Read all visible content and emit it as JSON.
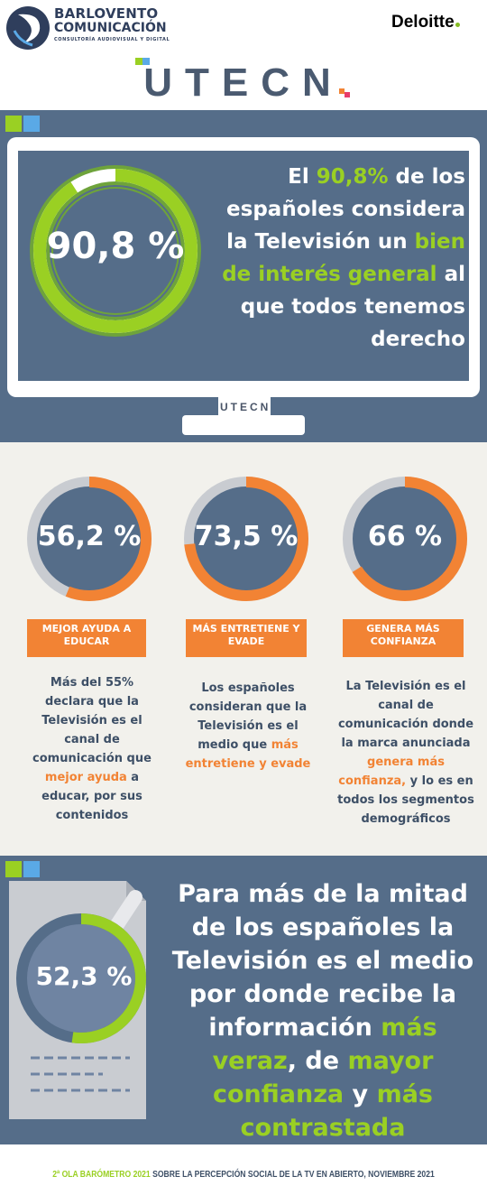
{
  "header": {
    "barlovento_line1": "BARLOVENTO",
    "barlovento_line2": "COMUNICACIÓN",
    "barlovento_tagline": "CONSULTORÍA AUDIOVISUAL Y DIGITAL",
    "deloitte": "Deloitte",
    "utecn_logo": "UTECN"
  },
  "colors": {
    "slate": "#556d89",
    "green": "#9ad023",
    "orange": "#f28334",
    "blue": "#5aa9e6",
    "ring_gray": "#c9ccd1"
  },
  "main_stat": {
    "value": "90,8 %",
    "fraction": 0.908,
    "headline_parts": [
      "El ",
      "90,8%",
      " de los españoles considera la Televisión un ",
      "bien de interés general",
      " al que todos tenemos derecho"
    ],
    "stand_logo": "UTECN"
  },
  "stats": [
    {
      "value": "56,2 %",
      "fraction": 0.562,
      "label": "MEJOR AYUDA A EDUCAR",
      "desc_parts": [
        "Más del 55% declara que la Televisión es el canal de comunicación que ",
        "mejor ayuda",
        " a educar, por sus contenidos"
      ]
    },
    {
      "value": "73,5 %",
      "fraction": 0.735,
      "label": "MÁS ENTRETIENE Y EVADE",
      "desc_parts": [
        "Los españoles consideran que la Televisión es el medio que ",
        "más entretiene y evade",
        ""
      ]
    },
    {
      "value": "66 %",
      "fraction": 0.66,
      "label": "GENERA MÁS CONFIANZA",
      "desc_parts": [
        "La Televisión es el canal de comunicación donde la marca anunciada ",
        "genera más confianza,",
        " y lo es en todos los segmentos demográficos"
      ]
    }
  ],
  "info_stat": {
    "value": "52,3 %",
    "fraction": 0.523,
    "text_parts": [
      "Para más de la mitad de los españoles la Televisión es el medio por donde recibe la información ",
      "más veraz",
      ", de ",
      "mayor confianza",
      " y ",
      "más contrastada"
    ]
  },
  "footer": {
    "highlight": "2ª OLA BARÓMETRO 2021",
    "rest": " SOBRE LA PERCEPCIÓN SOCIAL DE LA TV EN ABIERTO, NOVIEMBRE 2021"
  }
}
